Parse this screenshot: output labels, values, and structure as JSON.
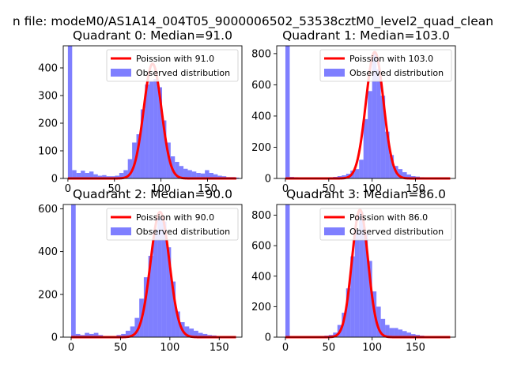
{
  "suptitle": "n file: modeM0/AS1A14_004T05_9000006502_53538cztM0_level2_quad_clean",
  "colors": {
    "bars": "#0000ff",
    "line": "#ff0000",
    "axis": "#000000",
    "background": "#ffffff"
  },
  "chart_data": [
    {
      "type": "bar",
      "title": "Quadrant 0: Median=91.0",
      "legend": [
        "Poission with 91.0",
        "Observed distribution"
      ],
      "legend_position": "upper-right",
      "median": 91.0,
      "poisson_mean": 91.0,
      "xlim": [
        -5,
        187
      ],
      "ylim": [
        0,
        480
      ],
      "xticks": [
        0,
        50,
        100,
        150
      ],
      "yticks": [
        0,
        100,
        200,
        300,
        400
      ],
      "bin_width": 4.6,
      "bins": [
        0,
        4.6,
        9.2,
        13.8,
        18.4,
        23,
        27.6,
        32.2,
        36.8,
        41.4,
        46,
        50.6,
        55.2,
        59.8,
        64.4,
        69,
        73.6,
        78.2,
        82.8,
        87.4,
        92,
        96.6,
        101.2,
        105.8,
        110.4,
        115,
        119.6,
        124.2,
        128.8,
        133.4,
        138,
        142.6,
        147.2,
        151.8,
        156.4,
        161,
        165.6,
        170.2,
        174.8,
        179.4
      ],
      "values": [
        480,
        30,
        20,
        28,
        20,
        25,
        15,
        10,
        12,
        8,
        8,
        10,
        20,
        30,
        70,
        130,
        160,
        250,
        340,
        350,
        360,
        330,
        210,
        130,
        80,
        60,
        45,
        35,
        30,
        25,
        20,
        18,
        30,
        20,
        15,
        10,
        8,
        5,
        5,
        3
      ],
      "poisson_peak": 415
    },
    {
      "type": "bar",
      "title": "Quadrant 1: Median=103.0",
      "legend": [
        "Poission with 103.0",
        "Observed distribution"
      ],
      "legend_position": "upper-right",
      "median": 103.0,
      "poisson_mean": 103.0,
      "xlim": [
        -10,
        196
      ],
      "ylim": [
        0,
        850
      ],
      "xticks": [
        0,
        50,
        100,
        150
      ],
      "yticks": [
        0,
        200,
        400,
        600,
        800
      ],
      "bin_width": 5,
      "bins": [
        0,
        5,
        10,
        15,
        20,
        25,
        30,
        35,
        40,
        45,
        50,
        55,
        60,
        65,
        70,
        75,
        80,
        85,
        90,
        95,
        100,
        105,
        110,
        115,
        120,
        125,
        130,
        135,
        140,
        145,
        150,
        155,
        160,
        165,
        170,
        175
      ],
      "values": [
        850,
        10,
        8,
        5,
        5,
        5,
        5,
        5,
        5,
        5,
        8,
        10,
        15,
        20,
        30,
        50,
        60,
        120,
        380,
        560,
        800,
        700,
        530,
        300,
        150,
        80,
        60,
        40,
        25,
        15,
        12,
        8,
        6,
        4,
        3,
        2
      ],
      "poisson_peak": 810
    },
    {
      "type": "bar",
      "title": "Quadrant 2: Median=90.0",
      "legend": [
        "Poission with 90.0",
        "Observed distribution"
      ],
      "legend_position": "upper-right",
      "median": 90.0,
      "poisson_mean": 90.0,
      "xlim": [
        -8,
        173
      ],
      "ylim": [
        0,
        620
      ],
      "xticks": [
        0,
        50,
        100,
        150
      ],
      "yticks": [
        0,
        200,
        400,
        600
      ],
      "bin_width": 4.6,
      "bins": [
        0,
        4.6,
        9.2,
        13.8,
        18.4,
        23,
        27.6,
        32.2,
        36.8,
        41.4,
        46,
        50.6,
        55.2,
        59.8,
        64.4,
        69,
        73.6,
        78.2,
        82.8,
        87.4,
        92,
        96.6,
        101.2,
        105.8,
        110.4,
        115,
        119.6,
        124.2,
        128.8,
        133.4,
        138,
        142.6,
        147.2,
        151.8,
        156.4,
        161
      ],
      "values": [
        620,
        15,
        10,
        20,
        15,
        20,
        10,
        5,
        5,
        5,
        10,
        15,
        30,
        50,
        90,
        180,
        280,
        380,
        500,
        560,
        540,
        420,
        260,
        120,
        70,
        50,
        40,
        30,
        20,
        15,
        10,
        8,
        5,
        5,
        3,
        2
      ],
      "poisson_peak": 585
    },
    {
      "type": "bar",
      "title": "Quadrant 3: Median=86.0",
      "legend": [
        "Poission with 86.0",
        "Observed distribution"
      ],
      "legend_position": "upper-right",
      "median": 86.0,
      "poisson_mean": 86.0,
      "xlim": [
        -10,
        196
      ],
      "ylim": [
        0,
        870
      ],
      "xticks": [
        0,
        50,
        100,
        150
      ],
      "yticks": [
        0,
        200,
        400,
        600,
        800
      ],
      "bin_width": 5,
      "bins": [
        0,
        5,
        10,
        15,
        20,
        25,
        30,
        35,
        40,
        45,
        50,
        55,
        60,
        65,
        70,
        75,
        80,
        85,
        90,
        95,
        100,
        105,
        110,
        115,
        120,
        125,
        130,
        135,
        140,
        145,
        150,
        155,
        160,
        165,
        170,
        175
      ],
      "values": [
        870,
        5,
        5,
        5,
        5,
        5,
        5,
        5,
        8,
        10,
        15,
        30,
        80,
        160,
        320,
        530,
        700,
        820,
        680,
        500,
        300,
        200,
        120,
        80,
        60,
        60,
        50,
        40,
        30,
        20,
        15,
        10,
        5,
        4,
        3,
        2
      ],
      "poisson_peak": 835
    }
  ]
}
